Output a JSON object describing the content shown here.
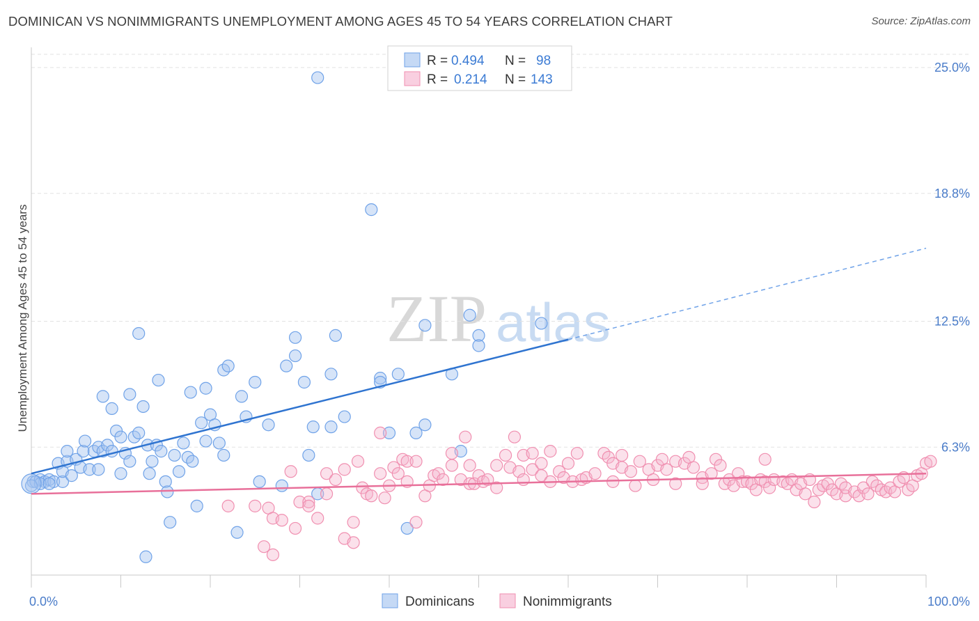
{
  "title": "DOMINICAN VS NONIMMIGRANTS UNEMPLOYMENT AMONG AGES 45 TO 54 YEARS CORRELATION CHART",
  "source": "Source: ZipAtlas.com",
  "watermark": {
    "zip": "ZIP",
    "atlas": "atlas"
  },
  "legend_top": [
    {
      "r_label": "R =",
      "r_value": "0.494",
      "n_label": "N =",
      "n_value": "98",
      "color": "#6fa2e8"
    },
    {
      "r_label": "R =",
      "r_value": "0.214",
      "n_label": "N =",
      "n_value": "143",
      "color": "#f08fb0"
    }
  ],
  "legend_bottom": [
    {
      "name": "Dominicans",
      "color": "#6fa2e8"
    },
    {
      "name": "Nonimmigrants",
      "color": "#f08fb0"
    }
  ],
  "chart_data": {
    "type": "scatter",
    "ylabel": "Unemployment Among Ages 45 to 54 years",
    "xlabel": "",
    "x_tick_labels": [
      "0.0%",
      "100.0%"
    ],
    "y_tick_labels": [
      "6.3%",
      "12.5%",
      "18.8%",
      "25.0%"
    ],
    "y_tick_values": [
      6.3,
      12.5,
      18.8,
      25.0
    ],
    "xlim": [
      0,
      100
    ],
    "ylim": [
      0,
      25.6
    ],
    "grid": "horizontal dashed",
    "legend_position": "top-center",
    "series": [
      {
        "name": "Dominicans",
        "color": "#6fa2e8",
        "trend": {
          "x0": 0,
          "y0": 5.0,
          "x1": 60,
          "y1": 11.6,
          "dashed_to_x": 100,
          "dashed_to_y": 16.1
        },
        "points": [
          [
            0.2,
            4.6
          ],
          [
            0.5,
            4.6
          ],
          [
            1,
            4.7
          ],
          [
            1.5,
            4.6
          ],
          [
            2,
            4.7
          ],
          [
            2.5,
            4.6
          ],
          [
            3,
            5.5
          ],
          [
            3.5,
            4.6
          ],
          [
            3.5,
            5.1
          ],
          [
            4,
            5.6
          ],
          [
            4,
            6.1
          ],
          [
            4.5,
            4.9
          ],
          [
            5,
            5.7
          ],
          [
            5.5,
            5.3
          ],
          [
            5.8,
            6.1
          ],
          [
            6,
            6.6
          ],
          [
            6.5,
            5.2
          ],
          [
            7,
            6.1
          ],
          [
            7.5,
            6.3
          ],
          [
            7.5,
            5.2
          ],
          [
            8,
            6.1
          ],
          [
            8,
            8.8
          ],
          [
            8.5,
            6.4
          ],
          [
            9,
            6.1
          ],
          [
            9,
            8.2
          ],
          [
            9.5,
            7.1
          ],
          [
            10,
            5.0
          ],
          [
            10,
            6.8
          ],
          [
            10.5,
            6.0
          ],
          [
            11,
            8.9
          ],
          [
            11,
            5.6
          ],
          [
            11.5,
            6.8
          ],
          [
            12,
            7.0
          ],
          [
            12,
            11.9
          ],
          [
            12.5,
            8.3
          ],
          [
            12.8,
            0.9
          ],
          [
            13,
            6.4
          ],
          [
            13.2,
            5.0
          ],
          [
            13.5,
            5.6
          ],
          [
            14,
            6.4
          ],
          [
            14.2,
            9.6
          ],
          [
            14.5,
            6.1
          ],
          [
            15,
            4.6
          ],
          [
            15.2,
            4.1
          ],
          [
            15.5,
            2.6
          ],
          [
            16,
            5.9
          ],
          [
            16.5,
            5.1
          ],
          [
            17,
            6.5
          ],
          [
            17.5,
            5.8
          ],
          [
            17.8,
            9.0
          ],
          [
            18,
            5.6
          ],
          [
            18.5,
            3.4
          ],
          [
            19,
            7.5
          ],
          [
            19.5,
            6.6
          ],
          [
            19.5,
            9.2
          ],
          [
            20,
            7.9
          ],
          [
            20.5,
            7.4
          ],
          [
            21,
            6.5
          ],
          [
            21.5,
            10.1
          ],
          [
            21.5,
            5.9
          ],
          [
            22,
            10.3
          ],
          [
            23,
            2.1
          ],
          [
            23.5,
            8.8
          ],
          [
            24,
            7.8
          ],
          [
            25,
            9.5
          ],
          [
            25.5,
            4.6
          ],
          [
            26.5,
            7.4
          ],
          [
            28,
            4.4
          ],
          [
            28.5,
            10.3
          ],
          [
            29.5,
            11.7
          ],
          [
            29.5,
            10.8
          ],
          [
            30.5,
            9.5
          ],
          [
            31,
            5.9
          ],
          [
            31.5,
            7.3
          ],
          [
            32,
            4.0
          ],
          [
            32,
            24.5
          ],
          [
            33.5,
            7.3
          ],
          [
            33.5,
            9.9
          ],
          [
            34,
            11.8
          ],
          [
            35,
            7.8
          ],
          [
            38,
            18.0
          ],
          [
            39,
            9.7
          ],
          [
            39,
            9.5
          ],
          [
            40,
            7.0
          ],
          [
            41,
            9.9
          ],
          [
            42,
            2.3
          ],
          [
            43,
            7.0
          ],
          [
            44,
            7.4
          ],
          [
            44,
            12.3
          ],
          [
            47,
            9.9
          ],
          [
            48,
            6.1
          ],
          [
            49,
            12.8
          ],
          [
            50,
            11.8
          ],
          [
            50,
            11.3
          ],
          [
            57,
            12.4
          ],
          [
            1,
            4.5
          ],
          [
            2,
            4.5
          ],
          [
            0,
            4.4
          ]
        ]
      },
      {
        "name": "Nonimmigrants",
        "color": "#f08fb0",
        "trend": {
          "x0": 0,
          "y0": 4.0,
          "x1": 100,
          "y1": 5.0
        },
        "points": [
          [
            22,
            3.4
          ],
          [
            25,
            3.4
          ],
          [
            26,
            1.4
          ],
          [
            26.5,
            3.3
          ],
          [
            27,
            1.0
          ],
          [
            27,
            2.8
          ],
          [
            28,
            2.7
          ],
          [
            29,
            5.1
          ],
          [
            29.5,
            2.3
          ],
          [
            30,
            3.6
          ],
          [
            31,
            3.6
          ],
          [
            31,
            3.4
          ],
          [
            32,
            2.8
          ],
          [
            33,
            5.0
          ],
          [
            33,
            4.0
          ],
          [
            34,
            4.7
          ],
          [
            35,
            5.2
          ],
          [
            35,
            1.8
          ],
          [
            36,
            1.6
          ],
          [
            36,
            2.6
          ],
          [
            36.5,
            5.6
          ],
          [
            37,
            4.3
          ],
          [
            37.5,
            4.0
          ],
          [
            38,
            3.9
          ],
          [
            39,
            7.0
          ],
          [
            39,
            5.0
          ],
          [
            39.5,
            3.8
          ],
          [
            40,
            4.4
          ],
          [
            40.5,
            5.3
          ],
          [
            41,
            5.0
          ],
          [
            41.5,
            5.7
          ],
          [
            42,
            5.6
          ],
          [
            42,
            4.6
          ],
          [
            43,
            5.6
          ],
          [
            43,
            2.6
          ],
          [
            44,
            3.9
          ],
          [
            44.5,
            4.4
          ],
          [
            45,
            4.9
          ],
          [
            45.5,
            5.0
          ],
          [
            46,
            4.7
          ],
          [
            47,
            6.0
          ],
          [
            47,
            5.4
          ],
          [
            48,
            4.7
          ],
          [
            48.5,
            6.8
          ],
          [
            49,
            4.5
          ],
          [
            49,
            5.4
          ],
          [
            49.5,
            4.5
          ],
          [
            50,
            4.9
          ],
          [
            50.5,
            4.6
          ],
          [
            51,
            4.7
          ],
          [
            52,
            5.4
          ],
          [
            52,
            4.3
          ],
          [
            53,
            5.9
          ],
          [
            53.5,
            5.3
          ],
          [
            54,
            6.8
          ],
          [
            54.5,
            5.1
          ],
          [
            55,
            5.9
          ],
          [
            55,
            4.7
          ],
          [
            56,
            6.0
          ],
          [
            56,
            5.2
          ],
          [
            57,
            4.9
          ],
          [
            57,
            5.5
          ],
          [
            58,
            6.1
          ],
          [
            58,
            4.6
          ],
          [
            59,
            5.1
          ],
          [
            59.5,
            4.8
          ],
          [
            60,
            5.5
          ],
          [
            60.5,
            4.6
          ],
          [
            61,
            6.0
          ],
          [
            61.5,
            4.7
          ],
          [
            62,
            4.8
          ],
          [
            63,
            5.0
          ],
          [
            64,
            6.0
          ],
          [
            64.5,
            5.8
          ],
          [
            65,
            5.5
          ],
          [
            65,
            4.6
          ],
          [
            66,
            5.9
          ],
          [
            66,
            5.3
          ],
          [
            67,
            5.1
          ],
          [
            67.5,
            4.4
          ],
          [
            68,
            5.6
          ],
          [
            69,
            5.2
          ],
          [
            69.5,
            4.7
          ],
          [
            70,
            5.4
          ],
          [
            70.5,
            5.7
          ],
          [
            71,
            5.2
          ],
          [
            72,
            5.6
          ],
          [
            72,
            4.5
          ],
          [
            73,
            5.5
          ],
          [
            73.5,
            5.8
          ],
          [
            74,
            5.3
          ],
          [
            75,
            4.8
          ],
          [
            75,
            4.5
          ],
          [
            76,
            5.0
          ],
          [
            76.5,
            5.7
          ],
          [
            77,
            5.4
          ],
          [
            77.5,
            4.5
          ],
          [
            78,
            4.7
          ],
          [
            78.5,
            4.4
          ],
          [
            79,
            5.0
          ],
          [
            79.5,
            4.6
          ],
          [
            80,
            4.6
          ],
          [
            80.5,
            4.5
          ],
          [
            81,
            4.2
          ],
          [
            81.5,
            4.7
          ],
          [
            82,
            4.6
          ],
          [
            82,
            5.7
          ],
          [
            82.5,
            4.3
          ],
          [
            83,
            4.7
          ],
          [
            84,
            4.6
          ],
          [
            84.5,
            4.5
          ],
          [
            85,
            4.7
          ],
          [
            85.5,
            4.2
          ],
          [
            86,
            4.5
          ],
          [
            86.5,
            4.0
          ],
          [
            87,
            4.7
          ],
          [
            87.5,
            3.6
          ],
          [
            88,
            4.2
          ],
          [
            88.5,
            4.4
          ],
          [
            89,
            4.5
          ],
          [
            89.5,
            4.2
          ],
          [
            90,
            4.0
          ],
          [
            90.5,
            4.5
          ],
          [
            91,
            3.9
          ],
          [
            91,
            4.3
          ],
          [
            92,
            4.1
          ],
          [
            92.5,
            3.9
          ],
          [
            93,
            4.3
          ],
          [
            93.5,
            4.0
          ],
          [
            94,
            4.6
          ],
          [
            94.5,
            4.4
          ],
          [
            95,
            4.2
          ],
          [
            95.5,
            4.1
          ],
          [
            96,
            4.3
          ],
          [
            96.5,
            4.1
          ],
          [
            97,
            4.6
          ],
          [
            97.5,
            4.8
          ],
          [
            98,
            4.2
          ],
          [
            98.5,
            4.4
          ],
          [
            99,
            4.9
          ],
          [
            99.5,
            5.0
          ],
          [
            100,
            5.5
          ],
          [
            100.5,
            5.6
          ]
        ]
      }
    ]
  }
}
